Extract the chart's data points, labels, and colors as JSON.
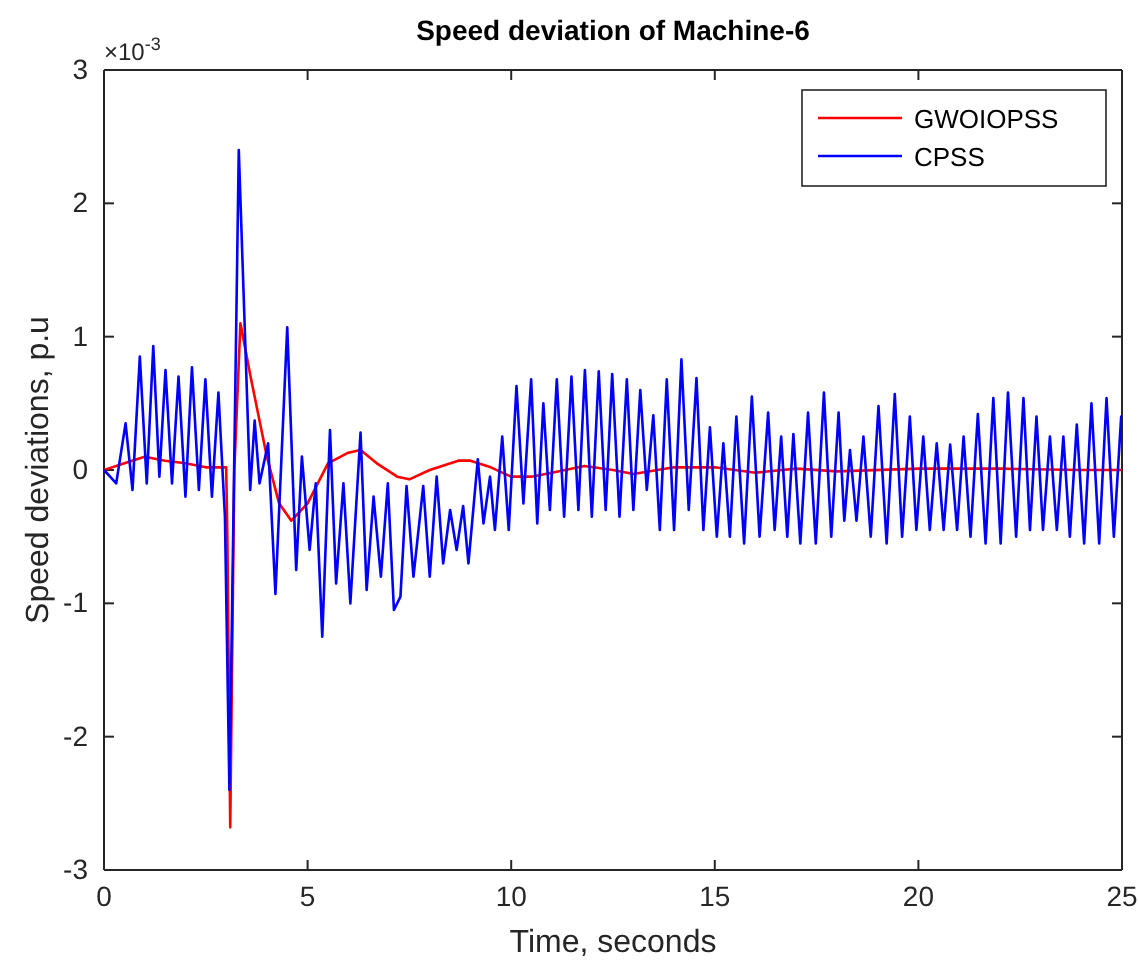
{
  "chart_data": {
    "type": "line",
    "title": "Speed deviation of Machine-6",
    "xlabel": "Time, seconds",
    "ylabel": "Speed deviations, p.u",
    "annotations": [
      "×10$^{-3}$"
    ],
    "xlim": [
      0,
      25
    ],
    "xticks": [
      0,
      5,
      10,
      15,
      20,
      25
    ],
    "ylim": [
      -3,
      3
    ],
    "yticks": [
      -3,
      -2,
      -1,
      0,
      1,
      2,
      3
    ],
    "grid": false,
    "legend": "top right",
    "line_style": "solid",
    "marker": "none",
    "series": [
      {
        "name": "GWOIOPSS",
        "color": "#ff0000",
        "x": [
          0,
          0.5,
          1.0,
          1.5,
          2.0,
          2.5,
          3.0,
          3.03,
          3.1,
          3.2,
          3.35,
          3.6,
          4.0,
          4.3,
          4.6,
          5.0,
          5.5,
          6.0,
          6.3,
          6.7,
          7.2,
          7.5,
          8.0,
          8.7,
          9.0,
          9.5,
          10.0,
          10.5,
          11.0,
          11.8,
          12.5,
          13.0,
          14.0,
          15.0,
          16.0,
          17.0,
          18.0,
          20.0,
          22.0,
          24.0,
          25.0
        ],
        "values": [
          0,
          0.05,
          0.1,
          0.07,
          0.05,
          0.02,
          0.02,
          -0.5,
          -2.68,
          0,
          1.1,
          0.7,
          0.1,
          -0.25,
          -0.38,
          -0.25,
          0.05,
          0.13,
          0.15,
          0.05,
          -0.05,
          -0.07,
          0,
          0.07,
          0.07,
          0.02,
          -0.05,
          -0.05,
          -0.02,
          0.03,
          0,
          -0.03,
          0.02,
          0.02,
          -0.02,
          0.01,
          -0.01,
          0.01,
          0.01,
          0,
          0
        ]
      },
      {
        "name": "CPSS",
        "color": "#0000ff",
        "x": [
          0,
          0.15,
          0.3,
          0.53,
          0.7,
          0.88,
          1.05,
          1.21,
          1.36,
          1.51,
          1.67,
          1.83,
          2.0,
          2.16,
          2.33,
          2.49,
          2.65,
          2.81,
          2.97,
          3.08,
          3.31,
          3.59,
          3.7,
          3.82,
          4.03,
          4.21,
          4.5,
          4.72,
          4.86,
          5.05,
          5.2,
          5.36,
          5.55,
          5.7,
          5.88,
          6.05,
          6.3,
          6.45,
          6.62,
          6.8,
          6.97,
          7.12,
          7.28,
          7.43,
          7.6,
          7.84,
          8.0,
          8.17,
          8.33,
          8.5,
          8.66,
          8.82,
          8.95,
          9.18,
          9.32,
          9.48,
          9.6,
          9.78,
          9.94,
          10.13,
          10.3,
          10.49,
          10.64,
          10.79,
          10.95,
          11.12,
          11.3,
          11.48,
          11.65,
          11.81,
          11.98,
          12.15,
          12.32,
          12.48,
          12.66,
          12.84,
          13.0,
          13.17,
          13.33,
          13.49,
          13.65,
          13.82,
          14.0,
          14.18,
          14.36,
          14.55,
          14.72,
          14.88,
          15.05,
          15.21,
          15.37,
          15.53,
          15.72,
          15.91,
          16.1,
          16.31,
          16.47,
          16.63,
          16.78,
          16.93,
          17.1,
          17.29,
          17.48,
          17.68,
          17.86,
          18.04,
          18.18,
          18.32,
          18.48,
          18.65,
          18.83,
          19.02,
          19.22,
          19.42,
          19.6,
          19.79,
          19.95,
          20.12,
          20.28,
          20.45,
          20.62,
          20.78,
          20.95,
          21.11,
          21.28,
          21.46,
          21.65,
          21.84,
          22.02,
          22.2,
          22.4,
          22.58,
          22.74,
          22.9,
          23.06,
          23.23,
          23.4,
          23.56,
          23.72,
          23.89,
          24.07,
          24.25,
          24.44,
          24.62,
          24.8,
          24.98,
          25.0
        ],
        "values": [
          0,
          -0.05,
          -0.1,
          0.35,
          -0.15,
          0.85,
          -0.1,
          0.93,
          -0.05,
          0.75,
          -0.1,
          0.7,
          -0.2,
          0.77,
          -0.15,
          0.68,
          -0.2,
          0.58,
          -0.35,
          -2.4,
          2.4,
          -0.15,
          0.37,
          -0.1,
          0.2,
          -0.93,
          1.07,
          -0.75,
          0.1,
          -0.6,
          -0.1,
          -1.25,
          0.3,
          -0.85,
          -0.1,
          -1.0,
          0.28,
          -0.9,
          -0.2,
          -0.8,
          -0.1,
          -1.05,
          -0.95,
          -0.12,
          -0.8,
          -0.12,
          -0.8,
          -0.05,
          -0.7,
          -0.3,
          -0.6,
          -0.27,
          -0.7,
          0.08,
          -0.4,
          -0.05,
          -0.45,
          0.25,
          -0.45,
          0.63,
          -0.25,
          0.68,
          -0.4,
          0.5,
          -0.3,
          0.68,
          -0.35,
          0.7,
          -0.3,
          0.75,
          -0.35,
          0.74,
          -0.3,
          0.72,
          -0.35,
          0.68,
          -0.3,
          0.6,
          -0.15,
          0.41,
          -0.45,
          0.68,
          -0.45,
          0.83,
          -0.3,
          0.69,
          -0.45,
          0.32,
          -0.5,
          0.2,
          -0.5,
          0.4,
          -0.55,
          0.55,
          -0.5,
          0.43,
          -0.45,
          0.25,
          -0.5,
          0.27,
          -0.55,
          0.43,
          -0.55,
          0.58,
          -0.5,
          0.43,
          -0.38,
          0.15,
          -0.38,
          0.25,
          -0.5,
          0.48,
          -0.55,
          0.57,
          -0.5,
          0.4,
          -0.45,
          0.25,
          -0.45,
          0.2,
          -0.45,
          0.19,
          -0.45,
          0.25,
          -0.5,
          0.42,
          -0.55,
          0.54,
          -0.55,
          0.58,
          -0.5,
          0.54,
          -0.45,
          0.4,
          -0.45,
          0.25,
          -0.45,
          0.25,
          -0.5,
          0.34,
          -0.55,
          0.5,
          -0.55,
          0.54,
          -0.5,
          0.4,
          0.38
        ]
      }
    ]
  }
}
